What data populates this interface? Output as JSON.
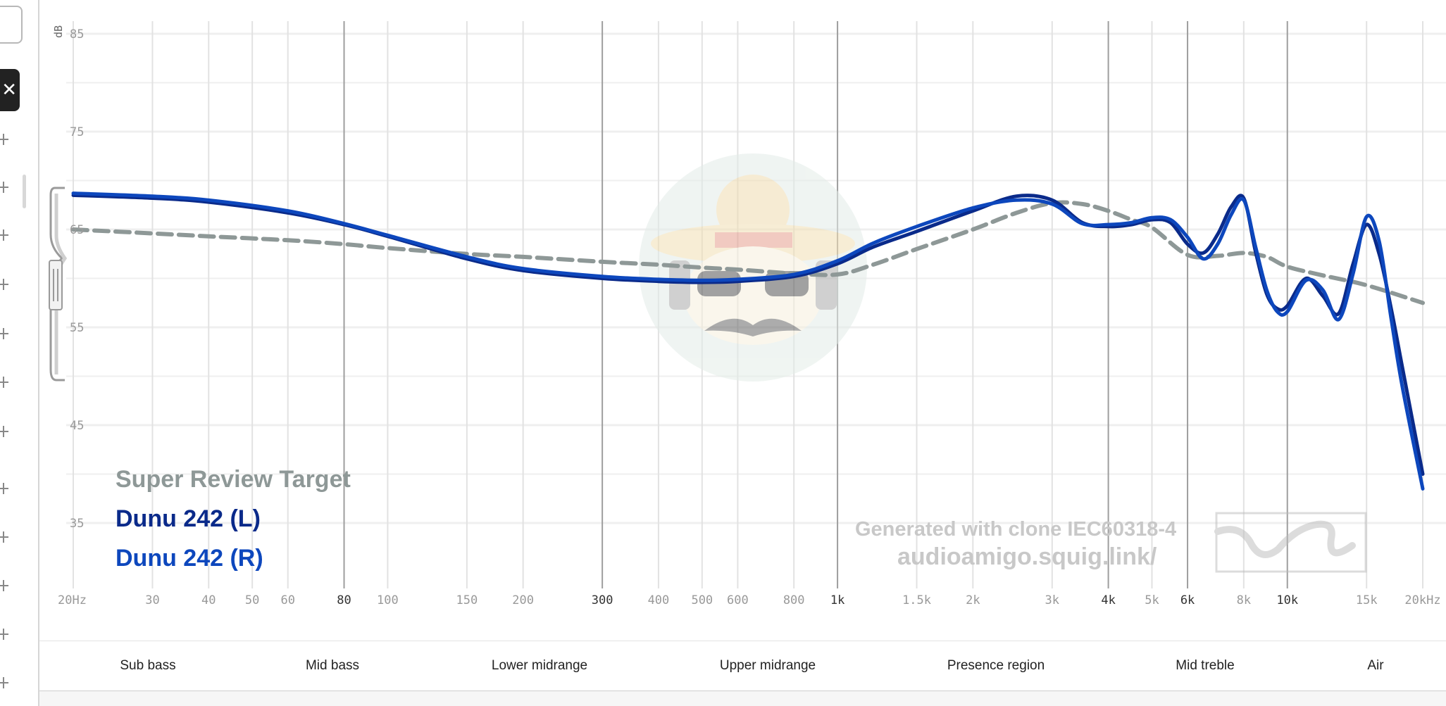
{
  "chart_data": {
    "type": "line",
    "ylabel": "dB",
    "ylim": [
      30,
      87
    ],
    "xlim": [
      20,
      20000
    ],
    "x_scale": "log",
    "y_ticks": [
      85,
      75,
      65,
      55,
      45,
      35
    ],
    "x_ticks": [
      {
        "value": 20,
        "label": "20Hz",
        "major": false
      },
      {
        "value": 30,
        "label": "30",
        "major": false
      },
      {
        "value": 40,
        "label": "40",
        "major": false
      },
      {
        "value": 50,
        "label": "50",
        "major": false
      },
      {
        "value": 60,
        "label": "60",
        "major": false
      },
      {
        "value": 80,
        "label": "80",
        "major": true
      },
      {
        "value": 100,
        "label": "100",
        "major": false
      },
      {
        "value": 150,
        "label": "150",
        "major": false
      },
      {
        "value": 200,
        "label": "200",
        "major": false
      },
      {
        "value": 300,
        "label": "300",
        "major": true
      },
      {
        "value": 400,
        "label": "400",
        "major": false
      },
      {
        "value": 500,
        "label": "500",
        "major": false
      },
      {
        "value": 600,
        "label": "600",
        "major": false
      },
      {
        "value": 800,
        "label": "800",
        "major": false
      },
      {
        "value": 1000,
        "label": "1k",
        "major": true
      },
      {
        "value": 1500,
        "label": "1.5k",
        "major": false
      },
      {
        "value": 2000,
        "label": "2k",
        "major": false
      },
      {
        "value": 3000,
        "label": "3k",
        "major": false
      },
      {
        "value": 4000,
        "label": "4k",
        "major": true
      },
      {
        "value": 5000,
        "label": "5k",
        "major": false
      },
      {
        "value": 6000,
        "label": "6k",
        "major": true
      },
      {
        "value": 8000,
        "label": "8k",
        "major": false
      },
      {
        "value": 10000,
        "label": "10k",
        "major": true
      },
      {
        "value": 15000,
        "label": "15k",
        "major": false
      },
      {
        "value": 20000,
        "label": "20kHz",
        "major": false
      }
    ],
    "grid": true,
    "legend_position": "bottom-left",
    "series": [
      {
        "name": "Super Review Target",
        "color": "#8e9897",
        "dashed": true,
        "x": [
          20,
          30,
          40,
          60,
          80,
          100,
          150,
          200,
          300,
          400,
          500,
          600,
          800,
          1000,
          1200,
          1500,
          2000,
          2500,
          3000,
          3500,
          4000,
          4500,
          5000,
          6000,
          7000,
          8000,
          9000,
          10000,
          12000,
          15000,
          20000
        ],
        "y": [
          65,
          64.6,
          64.3,
          63.9,
          63.5,
          63.1,
          62.5,
          62.2,
          61.7,
          61.4,
          61.1,
          60.9,
          60.5,
          60.4,
          61.4,
          63.0,
          65.0,
          66.7,
          67.7,
          67.6,
          66.9,
          66.0,
          65.2,
          62.4,
          62.3,
          62.6,
          62.2,
          61.2,
          60.3,
          59.3,
          57.5
        ]
      },
      {
        "name": "Dunu 242 (L)",
        "color": "#0a2a8a",
        "dashed": false,
        "x": [
          20,
          30,
          40,
          60,
          80,
          100,
          150,
          200,
          300,
          400,
          500,
          600,
          800,
          1000,
          1200,
          1500,
          2000,
          2500,
          3000,
          3500,
          4000,
          4500,
          5000,
          5500,
          6000,
          6500,
          7000,
          7500,
          8000,
          8500,
          9000,
          9500,
          10000,
          11000,
          12000,
          13000,
          14000,
          15000,
          16000,
          17000,
          18000,
          20000
        ],
        "y": [
          68.5,
          68.2,
          67.8,
          66.7,
          65.5,
          64.3,
          62.0,
          60.8,
          60.0,
          59.7,
          59.6,
          59.7,
          60.2,
          61.5,
          63.2,
          64.8,
          66.9,
          68.4,
          68.0,
          65.7,
          65.3,
          65.5,
          66.0,
          65.7,
          63.5,
          62.6,
          64.5,
          67.3,
          68.2,
          62.7,
          58.4,
          56.9,
          57.2,
          60.0,
          58.2,
          56.4,
          61.5,
          65.5,
          62.5,
          57.0,
          51.0,
          40.0
        ]
      },
      {
        "name": "Dunu 242 (R)",
        "color": "#0d47bd",
        "dashed": false,
        "x": [
          20,
          30,
          40,
          60,
          80,
          100,
          150,
          200,
          300,
          400,
          500,
          600,
          800,
          1000,
          1200,
          1500,
          2000,
          2500,
          3000,
          3500,
          4000,
          4500,
          5000,
          5500,
          6000,
          6500,
          7000,
          7500,
          8000,
          8500,
          9000,
          9500,
          10000,
          11000,
          12000,
          13000,
          14000,
          15000,
          16000,
          17000,
          18000,
          20000
        ],
        "y": [
          68.7,
          68.4,
          68.0,
          66.9,
          65.6,
          64.4,
          62.2,
          61.0,
          60.2,
          59.9,
          59.8,
          59.9,
          60.4,
          61.8,
          63.6,
          65.3,
          67.2,
          68.0,
          67.6,
          65.6,
          65.5,
          65.7,
          66.2,
          66.0,
          64.2,
          62.0,
          63.5,
          66.5,
          68.0,
          63.2,
          58.8,
          56.6,
          56.6,
          59.8,
          58.8,
          55.8,
          60.5,
          66.3,
          63.8,
          56.0,
          49.0,
          38.5
        ]
      }
    ]
  },
  "legend": {
    "items": [
      "Super Review Target",
      "Dunu 242 (L)",
      "Dunu 242 (R)"
    ],
    "colors": [
      "#8e9897",
      "#0a2a8a",
      "#0d47bd"
    ]
  },
  "watermark": {
    "line1": "Generated with clone IEC60318-4",
    "line2": "audioamigo.squig.link/"
  },
  "bands": [
    "Sub bass",
    "Mid bass",
    "Lower midrange",
    "Upper midrange",
    "Presence region",
    "Mid treble",
    "Air"
  ],
  "sidebar": {
    "close_glyph": "✕"
  }
}
